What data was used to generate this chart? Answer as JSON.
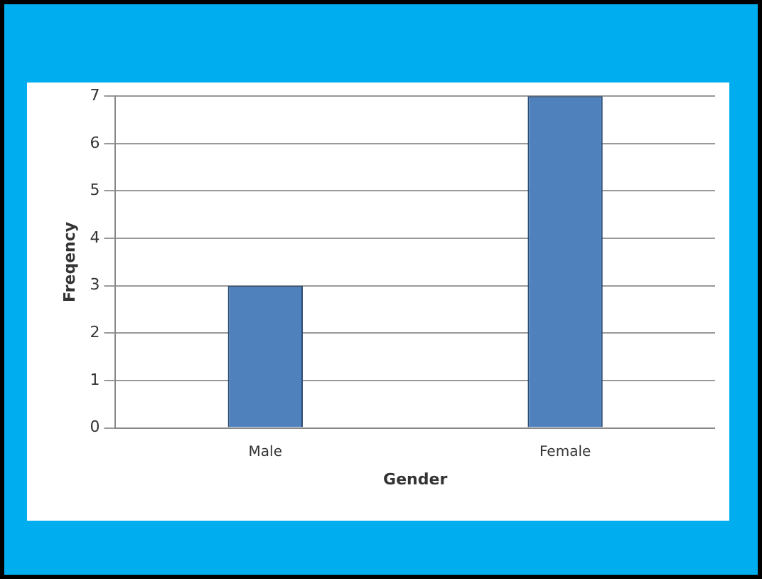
{
  "chart_data": {
    "type": "bar",
    "xlabel": "Gender",
    "ylabel": "Freqency",
    "categories": [
      "Male",
      "Female"
    ],
    "values": [
      3,
      7
    ],
    "color": "#4f81bd",
    "ylim": [
      0,
      7
    ],
    "yticks": [
      0,
      1,
      2,
      3,
      4,
      5,
      6,
      7
    ],
    "grid": "y"
  }
}
